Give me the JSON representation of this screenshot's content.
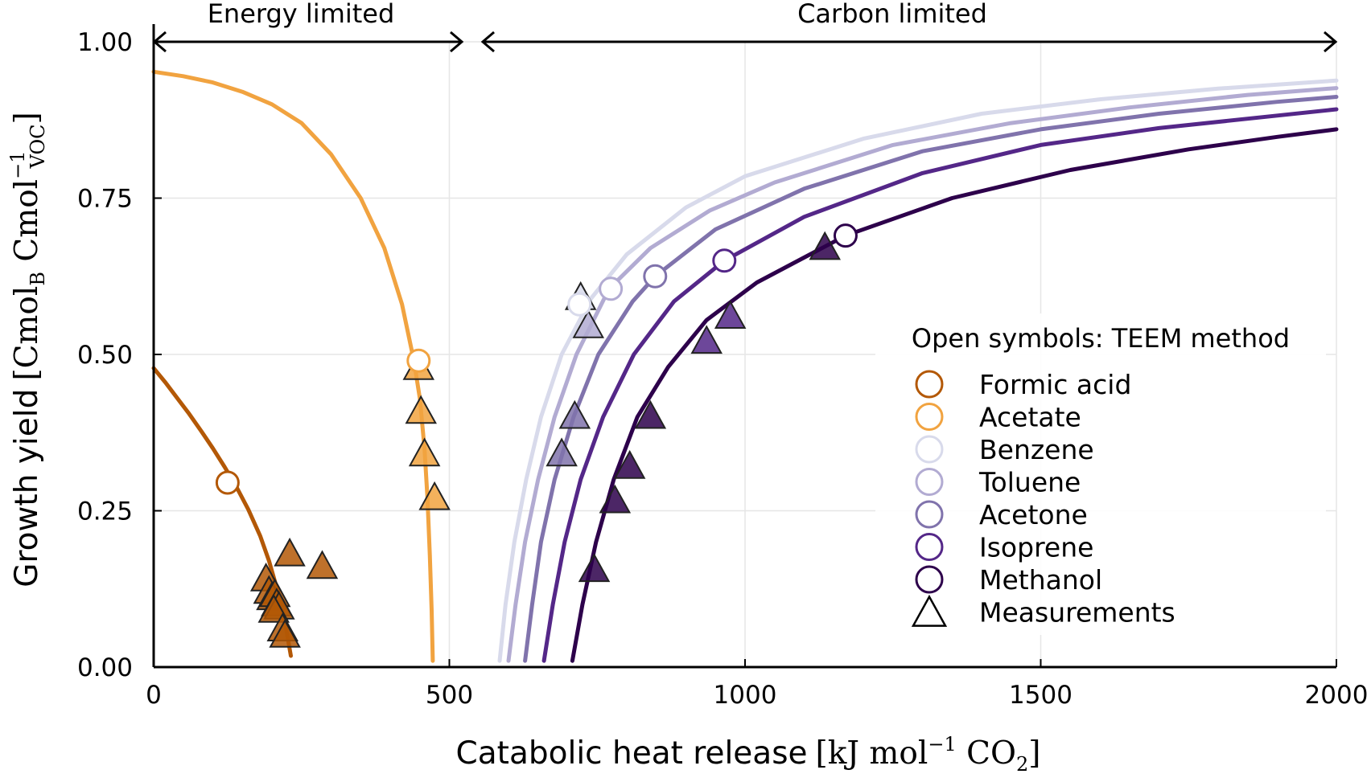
{
  "chart_data": {
    "type": "scatter",
    "xlabel": "Catabolic heat release",
    "xlabel_unit": {
      "open": "[",
      "pre": "kJ mol",
      "exp": "−1",
      "mid": " CO",
      "sub": "2",
      "close": "]"
    },
    "ylabel": "Growth yield",
    "ylabel_unit": {
      "open": "[",
      "a": "Cmol",
      "a_sub": "B",
      "b": " Cmol",
      "b_sub": "VOC",
      "b_exp": "−1",
      "close": "]"
    },
    "xlim": [
      0,
      2000
    ],
    "ylim": [
      0,
      1
    ],
    "xticks": [
      "0",
      "500",
      "1000",
      "1500",
      "2000"
    ],
    "yticks": [
      "0.00",
      "0.25",
      "0.50",
      "0.75",
      "1.00"
    ],
    "grid": true,
    "annotations": {
      "energy_limited": "Energy limited",
      "carbon_limited": "Carbon limited"
    },
    "legend": {
      "placement": "right",
      "title": "Open symbols: TEEM method",
      "measurements_label": "Measurements"
    },
    "series": [
      {
        "name": "Formic acid",
        "color": "#b35806",
        "curve": [
          [
            0,
            0.478
          ],
          [
            20,
            0.455
          ],
          [
            40,
            0.43
          ],
          [
            60,
            0.405
          ],
          [
            80,
            0.378
          ],
          [
            100,
            0.35
          ],
          [
            120,
            0.32
          ],
          [
            140,
            0.288
          ],
          [
            160,
            0.252
          ],
          [
            180,
            0.21
          ],
          [
            195,
            0.17
          ],
          [
            210,
            0.12
          ],
          [
            222,
            0.072
          ],
          [
            232,
            0.018
          ]
        ],
        "teem": [
          125,
          0.295
        ],
        "measurements": [
          [
            230,
            0.18
          ],
          [
            285,
            0.16
          ],
          [
            190,
            0.14
          ],
          [
            195,
            0.12
          ],
          [
            200,
            0.11
          ],
          [
            205,
            0.115
          ],
          [
            208,
            0.1
          ],
          [
            212,
            0.095
          ],
          [
            203,
            0.09
          ],
          [
            218,
            0.06
          ],
          [
            222,
            0.05
          ]
        ]
      },
      {
        "name": "Acetate",
        "color": "#f1a340",
        "curve": [
          [
            0,
            0.952
          ],
          [
            50,
            0.945
          ],
          [
            100,
            0.935
          ],
          [
            150,
            0.92
          ],
          [
            200,
            0.9
          ],
          [
            250,
            0.87
          ],
          [
            300,
            0.82
          ],
          [
            350,
            0.75
          ],
          [
            390,
            0.67
          ],
          [
            420,
            0.58
          ],
          [
            440,
            0.49
          ],
          [
            450,
            0.43
          ],
          [
            458,
            0.35
          ],
          [
            463,
            0.27
          ],
          [
            467,
            0.18
          ],
          [
            470,
            0.09
          ],
          [
            472,
            0.01
          ]
        ],
        "teem": [
          448,
          0.49
        ],
        "measurements": [
          [
            448,
            0.478
          ],
          [
            452,
            0.408
          ],
          [
            458,
            0.34
          ],
          [
            475,
            0.27
          ]
        ]
      },
      {
        "name": "Benzene",
        "color": "#d8daeb",
        "curve": [
          [
            585,
            0.01
          ],
          [
            595,
            0.1
          ],
          [
            610,
            0.2
          ],
          [
            630,
            0.3
          ],
          [
            655,
            0.4
          ],
          [
            690,
            0.5
          ],
          [
            740,
            0.59
          ],
          [
            800,
            0.66
          ],
          [
            900,
            0.735
          ],
          [
            1000,
            0.785
          ],
          [
            1200,
            0.845
          ],
          [
            1400,
            0.885
          ],
          [
            1600,
            0.908
          ],
          [
            1800,
            0.925
          ],
          [
            2000,
            0.938
          ]
        ],
        "teem": [
          720,
          0.58
        ],
        "measurements": [
          [
            722,
            0.59
          ]
        ]
      },
      {
        "name": "Toluene",
        "color": "#b2abd2",
        "curve": [
          [
            600,
            0.01
          ],
          [
            612,
            0.1
          ],
          [
            628,
            0.2
          ],
          [
            650,
            0.3
          ],
          [
            678,
            0.4
          ],
          [
            715,
            0.5
          ],
          [
            770,
            0.605
          ],
          [
            840,
            0.67
          ],
          [
            940,
            0.73
          ],
          [
            1050,
            0.775
          ],
          [
            1250,
            0.835
          ],
          [
            1450,
            0.87
          ],
          [
            1650,
            0.895
          ],
          [
            1850,
            0.915
          ],
          [
            2000,
            0.926
          ]
        ],
        "teem": [
          773,
          0.605
        ],
        "measurements": [
          [
            735,
            0.545
          ]
        ]
      },
      {
        "name": "Acetone",
        "color": "#8073ac",
        "curve": [
          [
            628,
            0.01
          ],
          [
            640,
            0.1
          ],
          [
            655,
            0.2
          ],
          [
            678,
            0.3
          ],
          [
            710,
            0.4
          ],
          [
            752,
            0.5
          ],
          [
            810,
            0.585
          ],
          [
            848,
            0.625
          ],
          [
            950,
            0.7
          ],
          [
            1100,
            0.765
          ],
          [
            1300,
            0.825
          ],
          [
            1500,
            0.86
          ],
          [
            1700,
            0.885
          ],
          [
            1900,
            0.904
          ],
          [
            2000,
            0.912
          ]
        ],
        "teem": [
          848,
          0.625
        ],
        "measurements": [
          [
            712,
            0.4
          ],
          [
            690,
            0.34
          ]
        ]
      },
      {
        "name": "Isoprene",
        "color": "#542788",
        "curve": [
          [
            660,
            0.01
          ],
          [
            675,
            0.1
          ],
          [
            695,
            0.2
          ],
          [
            722,
            0.3
          ],
          [
            760,
            0.4
          ],
          [
            812,
            0.5
          ],
          [
            880,
            0.585
          ],
          [
            965,
            0.65
          ],
          [
            1100,
            0.72
          ],
          [
            1300,
            0.79
          ],
          [
            1500,
            0.835
          ],
          [
            1700,
            0.862
          ],
          [
            1900,
            0.882
          ],
          [
            2000,
            0.892
          ]
        ],
        "teem": [
          965,
          0.65
        ],
        "measurements": [
          [
            975,
            0.56
          ],
          [
            935,
            0.52
          ]
        ]
      },
      {
        "name": "Methanol",
        "color": "#2d004b",
        "curve": [
          [
            708,
            0.01
          ],
          [
            725,
            0.1
          ],
          [
            748,
            0.2
          ],
          [
            778,
            0.3
          ],
          [
            818,
            0.4
          ],
          [
            870,
            0.48
          ],
          [
            935,
            0.555
          ],
          [
            1020,
            0.615
          ],
          [
            1170,
            0.69
          ],
          [
            1350,
            0.75
          ],
          [
            1550,
            0.795
          ],
          [
            1750,
            0.828
          ],
          [
            1900,
            0.848
          ],
          [
            2000,
            0.86
          ]
        ],
        "teem": [
          1170,
          0.69
        ],
        "measurements": [
          [
            1135,
            0.67
          ],
          [
            840,
            0.4
          ],
          [
            805,
            0.32
          ],
          [
            780,
            0.265
          ],
          [
            745,
            0.155
          ]
        ]
      }
    ]
  }
}
